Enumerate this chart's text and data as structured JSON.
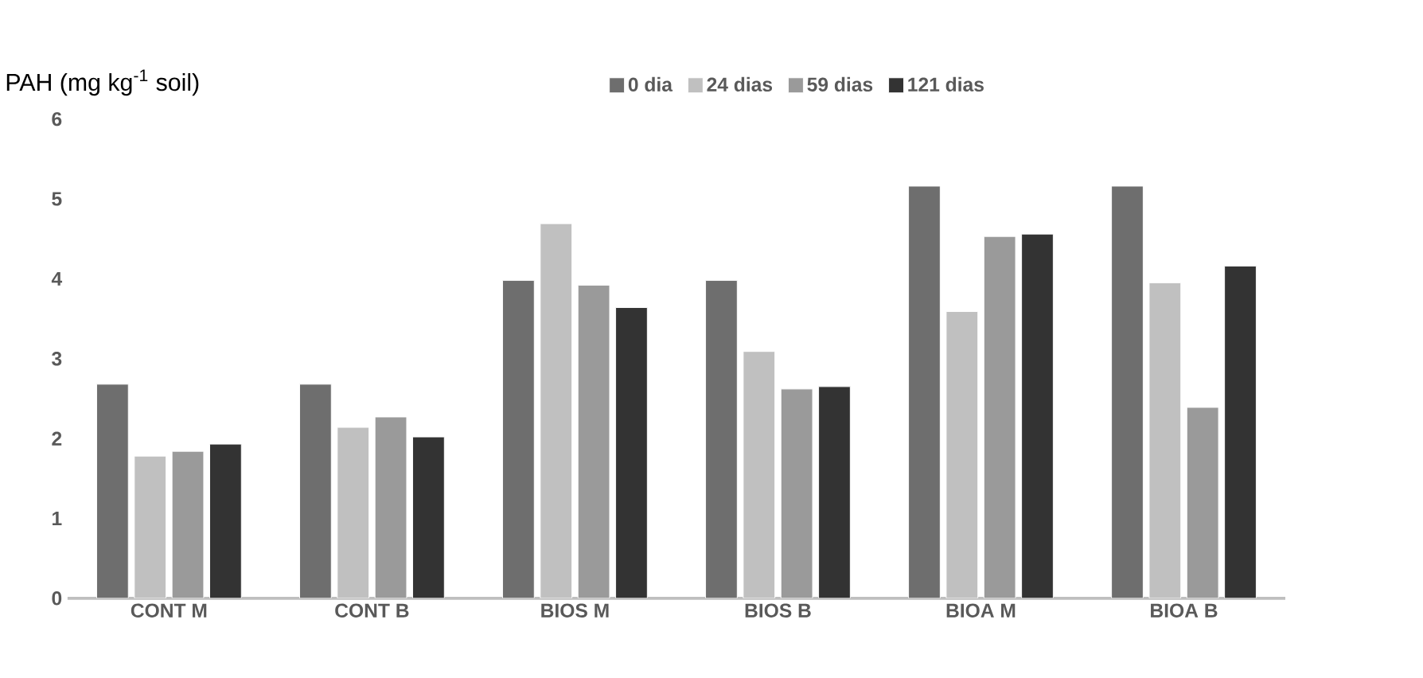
{
  "chart_data": {
    "type": "bar",
    "ylabel": "PAH (mg kg$^{-1}$ soil)",
    "categories": [
      "CONT M",
      "CONT B",
      "BIOS M",
      "BIOS B",
      "BIOA M",
      "BIOA B"
    ],
    "series": [
      {
        "name": "0 dia",
        "color": "#6e6e6e",
        "values": [
          2.68,
          2.68,
          3.98,
          3.98,
          5.16,
          5.16
        ]
      },
      {
        "name": "24 dias",
        "color": "#c0c0c0",
        "values": [
          1.78,
          2.14,
          4.69,
          3.09,
          3.59,
          3.95
        ]
      },
      {
        "name": "59 dias",
        "color": "#9a9a9a",
        "values": [
          1.84,
          2.27,
          3.92,
          2.62,
          4.53,
          2.39
        ]
      },
      {
        "name": "121 dias",
        "color": "#333333",
        "values": [
          1.93,
          2.02,
          3.64,
          2.65,
          4.56,
          4.16
        ]
      }
    ],
    "ylim": [
      0,
      6
    ],
    "yticks": [
      0,
      1,
      2,
      3,
      4,
      5,
      6
    ],
    "legend": "top"
  }
}
